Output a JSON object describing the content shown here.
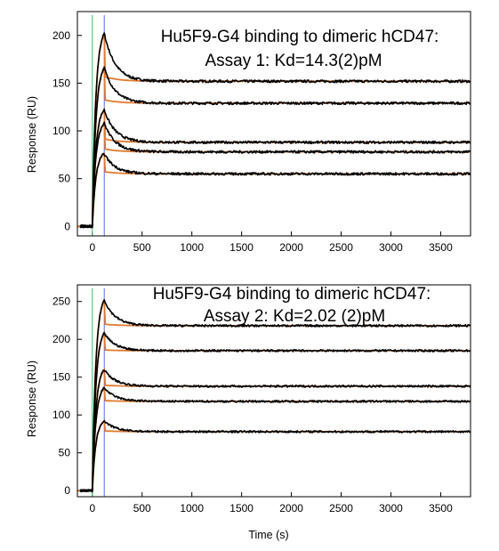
{
  "chart_data": [
    {
      "type": "line",
      "title": "Hu5F9-G4 binding to dimeric hCD47:",
      "subtitle": "Assay 1: Kd=14.3(2)pM",
      "xlabel": "",
      "ylabel": "Response (RU)",
      "xlim": [
        -150,
        3800
      ],
      "ylim": [
        -10,
        225
      ],
      "xticks": [
        0,
        500,
        1000,
        1500,
        2000,
        2500,
        3000,
        3500
      ],
      "yticks": [
        0,
        50,
        100,
        150,
        200
      ],
      "injection_start": 0,
      "injection_end": 120,
      "series": [
        {
          "peak": 202,
          "end": 152
        },
        {
          "peak": 166,
          "end": 129
        },
        {
          "peak": 122,
          "end": 88
        },
        {
          "peak": 108,
          "end": 78
        },
        {
          "peak": 76,
          "end": 55
        }
      ],
      "colors": {
        "trace": "#000000",
        "fit": "#e07a2e",
        "start_marker": "#33c46b",
        "end_marker": "#5b6cf0"
      }
    },
    {
      "type": "line",
      "title": "Hu5F9-G4 binding to dimeric hCD47:",
      "subtitle": "Assay 2: Kd=2.02 (2)pM",
      "xlabel": "Time (s)",
      "ylabel": "Response (RU)",
      "xlim": [
        -150,
        3800
      ],
      "ylim": [
        -8,
        272
      ],
      "xticks": [
        0,
        500,
        1000,
        1500,
        2000,
        2500,
        3000,
        3500
      ],
      "yticks": [
        0,
        50,
        100,
        150,
        200,
        250
      ],
      "injection_start": 0,
      "injection_end": 120,
      "series": [
        {
          "peak": 252,
          "end": 218
        },
        {
          "peak": 208,
          "end": 185
        },
        {
          "peak": 160,
          "end": 138
        },
        {
          "peak": 136,
          "end": 118
        },
        {
          "peak": 92,
          "end": 78
        }
      ],
      "colors": {
        "trace": "#000000",
        "fit": "#e07a2e",
        "start_marker": "#33c46b",
        "end_marker": "#5b6cf0"
      }
    }
  ]
}
